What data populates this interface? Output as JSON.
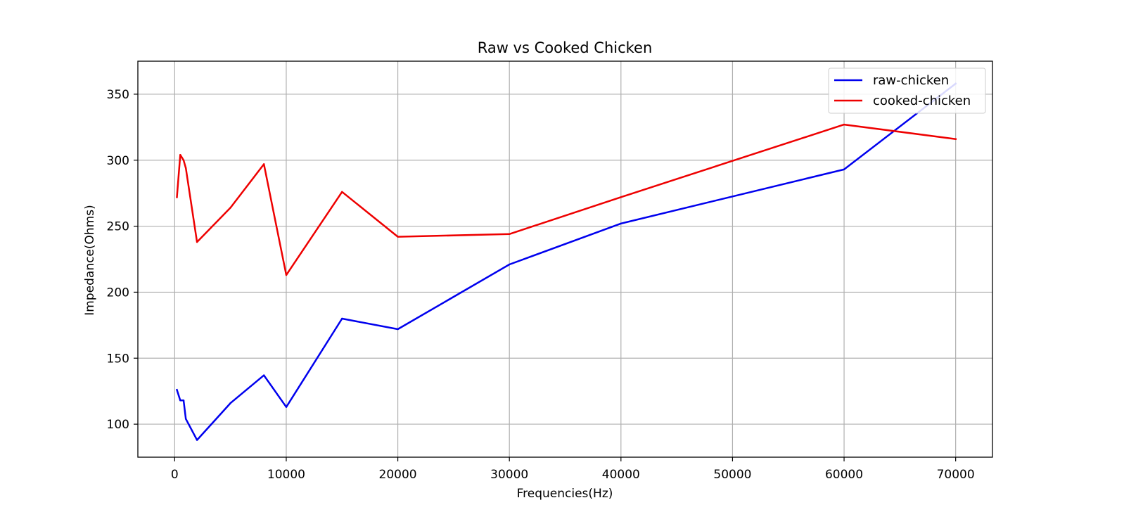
{
  "chart_data": {
    "type": "line",
    "title": "Raw vs Cooked Chicken",
    "xlabel": "Frequencies(Hz)",
    "ylabel": "Impedance(Ohms)",
    "xlim": [
      -3300,
      73300
    ],
    "ylim": [
      75,
      375
    ],
    "xticks": [
      0,
      10000,
      20000,
      30000,
      40000,
      50000,
      60000,
      70000
    ],
    "yticks": [
      100,
      150,
      200,
      250,
      300,
      350
    ],
    "grid": true,
    "legend_position": "top-right",
    "series": [
      {
        "name": "raw-chicken",
        "color": "#0000ee",
        "x": [
          200,
          500,
          800,
          1000,
          2000,
          5000,
          8000,
          10000,
          15000,
          20000,
          30000,
          40000,
          60000,
          70000
        ],
        "y": [
          126,
          118,
          118,
          104,
          88,
          116,
          137,
          113,
          180,
          172,
          221,
          252,
          293,
          358
        ]
      },
      {
        "name": "cooked-chicken",
        "color": "#ee0000",
        "x": [
          200,
          500,
          800,
          1000,
          2000,
          5000,
          8000,
          10000,
          15000,
          20000,
          30000,
          40000,
          60000,
          70000
        ],
        "y": [
          272,
          304,
          300,
          294,
          238,
          264,
          297,
          213,
          276,
          242,
          244,
          272,
          327,
          316
        ]
      }
    ]
  }
}
